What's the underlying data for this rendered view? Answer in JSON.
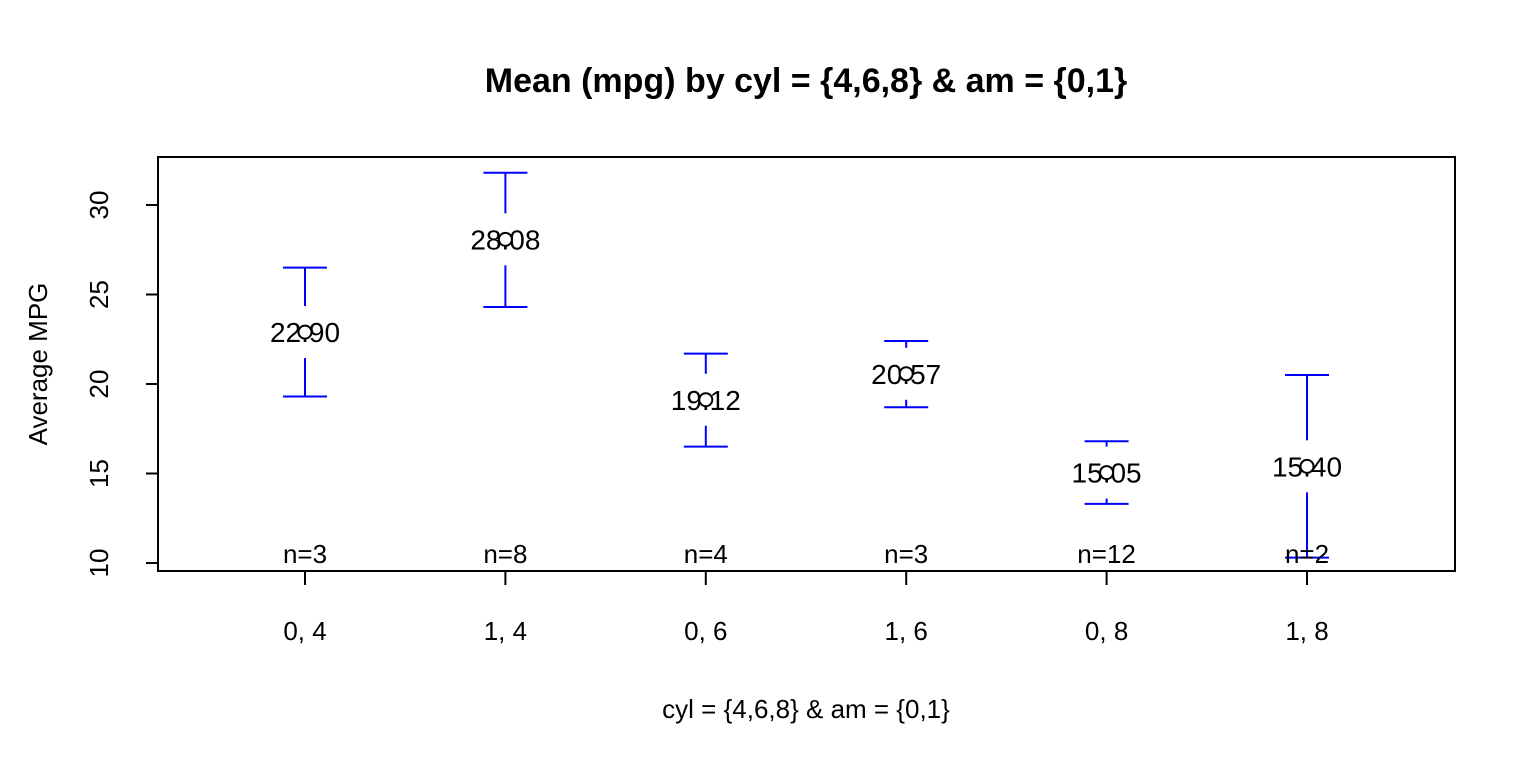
{
  "chart_data": {
    "type": "scatter",
    "title": "Mean (mpg) by cyl = {4,6,8} & am = {0,1}",
    "xlabel": "cyl = {4,6,8} & am = {0,1}",
    "ylabel": "Average MPG",
    "categories": [
      "0, 4",
      "1, 4",
      "0, 6",
      "1, 6",
      "0, 8",
      "1, 8"
    ],
    "means": [
      22.9,
      28.08,
      19.12,
      20.57,
      15.05,
      15.4
    ],
    "mean_labels": [
      "22.90",
      "28.08",
      "19.12",
      "20.57",
      "15.05",
      "15.40"
    ],
    "lower": [
      19.3,
      24.3,
      16.5,
      18.7,
      13.3,
      10.3
    ],
    "upper": [
      26.5,
      31.8,
      21.7,
      22.4,
      16.8,
      20.5
    ],
    "n_labels": [
      "n=3",
      "n=8",
      "n=4",
      "n=3",
      "n=12",
      "n=2"
    ],
    "ylim": [
      10,
      32.6
    ],
    "y_ticks": [
      10,
      15,
      20,
      25,
      30
    ],
    "errorbar_color": "#0000ff",
    "grid": false,
    "legend": "none"
  }
}
